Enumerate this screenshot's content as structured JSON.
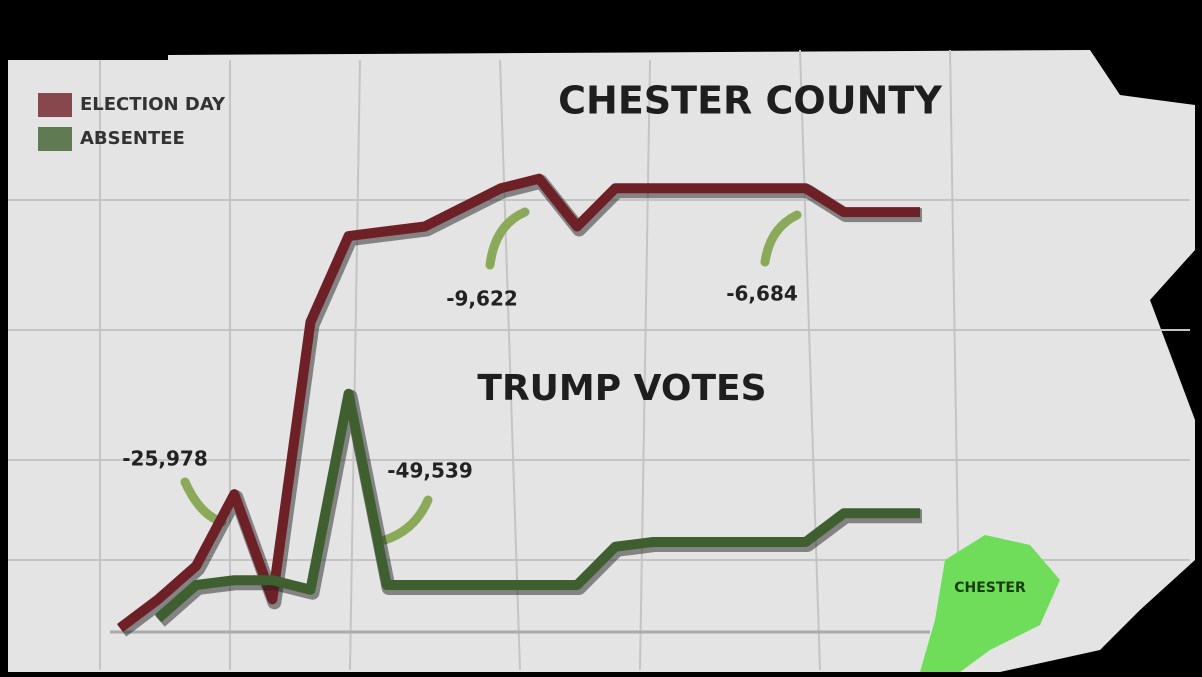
{
  "chart_data": {
    "type": "line",
    "title": "CHESTER COUNTY",
    "subtitle": "TRUMP VOTES",
    "annotations": [
      "-25,978",
      "-49,539",
      "-9,622",
      "-6,684"
    ],
    "region_label": "CHESTER",
    "categories": [
      null,
      null,
      null,
      null,
      null,
      null,
      null,
      null,
      null,
      null,
      null,
      null,
      null,
      null,
      null,
      null,
      null,
      null,
      null,
      null,
      null,
      null
    ],
    "ylim": [
      0,
      100
    ],
    "legend": "upper left",
    "series": [
      {
        "name": "ELECTION DAY",
        "color": "#6e2027",
        "values": [
          0,
          6,
          13,
          28,
          6,
          64,
          82,
          83,
          84,
          88,
          92,
          94,
          84,
          92,
          92,
          92,
          92,
          92,
          92,
          87,
          87,
          87
        ]
      },
      {
        "name": "ABSENTEE",
        "color": "#3f5f30",
        "values": [
          null,
          2,
          9,
          10,
          10,
          8,
          49,
          9,
          9,
          9,
          9,
          9,
          9,
          17,
          18,
          18,
          18,
          18,
          18,
          24,
          24,
          24
        ]
      }
    ]
  }
}
